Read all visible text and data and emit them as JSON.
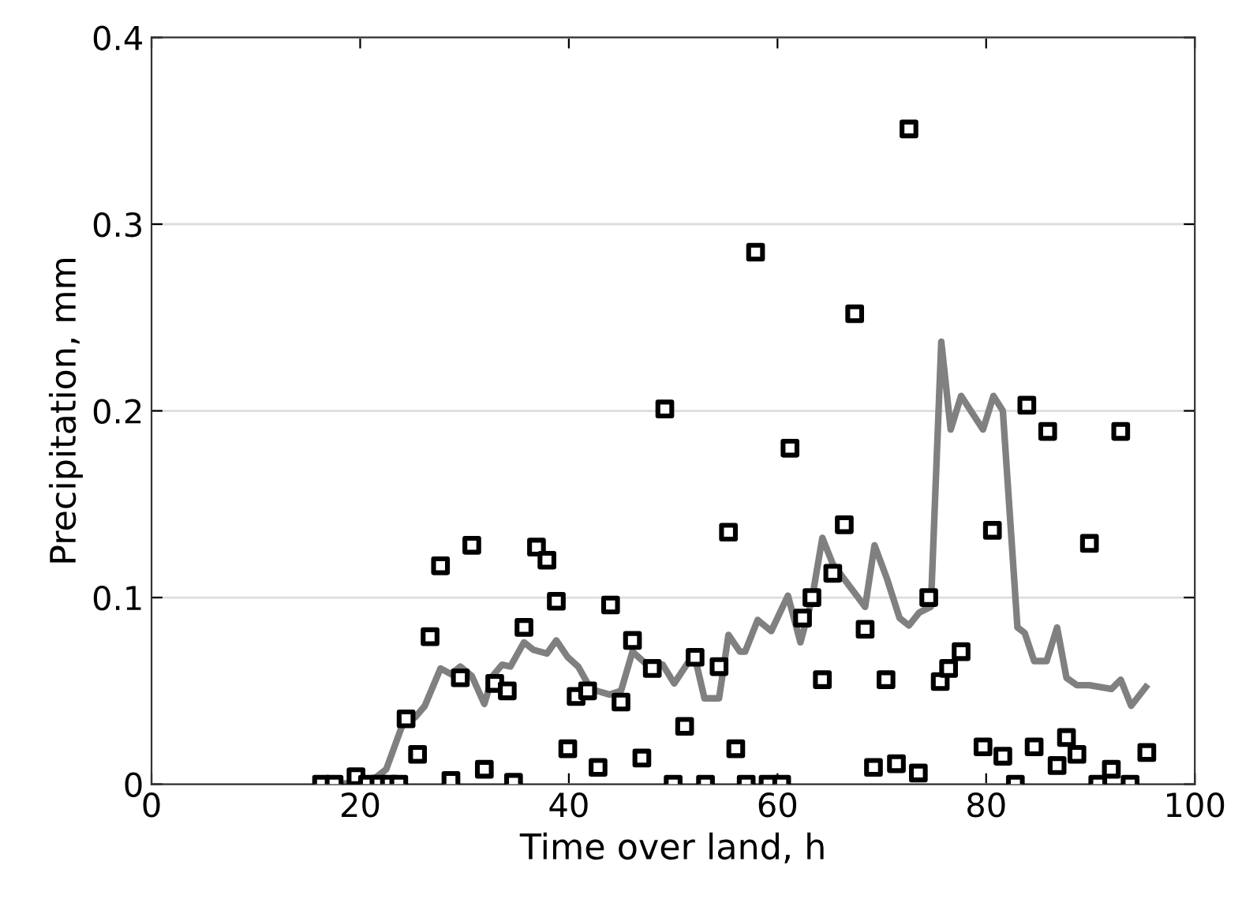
{
  "chart_data": {
    "type": "scatter",
    "xlabel": "Time over land, h",
    "ylabel": "Precipitation, mm",
    "xlim": [
      0,
      100
    ],
    "ylim": [
      0,
      0.4
    ],
    "xticks": [
      0,
      20,
      40,
      60,
      80,
      100
    ],
    "yticks": [
      0,
      0.1,
      0.2,
      0.3,
      0.4
    ],
    "grid": "y",
    "series": [
      {
        "color": "#000000",
        "marker": "square",
        "x": [
          16.3,
          17.5,
          19.6,
          20.7,
          21.8,
          22.8,
          23.7,
          24.4,
          25.5,
          26.7,
          27.7,
          28.7,
          29.6,
          30.7,
          31.9,
          32.9,
          34.1,
          34.7,
          35.7,
          36.9,
          37.9,
          38.8,
          39.9,
          40.7,
          41.8,
          42.8,
          44.0,
          45.0,
          46.1,
          47.0,
          48.0,
          49.2,
          50.0,
          51.1,
          52.1,
          53.1,
          54.4,
          55.3,
          56.0,
          57.0,
          57.9,
          59.1,
          60.4,
          61.2,
          62.4,
          63.3,
          64.3,
          65.3,
          66.4,
          67.4,
          68.4,
          69.2,
          70.4,
          71.4,
          72.6,
          73.5,
          74.5,
          75.6,
          76.4,
          77.6,
          79.7,
          80.6,
          81.6,
          82.8,
          83.9,
          84.6,
          85.9,
          86.8,
          87.7,
          88.7,
          89.9,
          90.7,
          92.0,
          92.9,
          93.8,
          95.4
        ],
        "values": [
          0,
          0,
          0.004,
          0,
          0,
          0,
          0,
          0.035,
          0.016,
          0.079,
          0.117,
          0.002,
          0.057,
          0.128,
          0.008,
          0.054,
          0.05,
          0.001,
          0.084,
          0.127,
          0.12,
          0.098,
          0.019,
          0.047,
          0.05,
          0.009,
          0.096,
          0.044,
          0.077,
          0.014,
          0.062,
          0.201,
          0,
          0.031,
          0.068,
          0,
          0.063,
          0.135,
          0.019,
          0,
          0.285,
          0,
          0,
          0.18,
          0.089,
          0.1,
          0.056,
          0.113,
          0.139,
          0.252,
          0.083,
          0.009,
          0.056,
          0.011,
          0.351,
          0.006,
          0.1,
          0.055,
          0.062,
          0.071,
          0.02,
          0.136,
          0.015,
          0,
          0.203,
          0.02,
          0.189,
          0.01,
          0.025,
          0.016,
          0.129,
          0,
          0.008,
          0.189,
          0,
          0.017
        ]
      },
      {
        "type": "line",
        "color": "#808080",
        "marker": "none",
        "line_style": "solid",
        "x": [
          16.6,
          20.9,
          22.5,
          24.0,
          25.3,
          26.2,
          27.7,
          28.7,
          29.6,
          30.7,
          31.9,
          32.7,
          33.6,
          34.4,
          35.7,
          36.6,
          37.9,
          38.8,
          39.9,
          40.9,
          42.1,
          43.9,
          45.0,
          46.1,
          47.3,
          49.0,
          50.1,
          52.0,
          53.0,
          54.4,
          55.3,
          56.4,
          56.9,
          58.1,
          59.4,
          61.0,
          62.2,
          63.3,
          64.3,
          65.3,
          68.4,
          69.3,
          70.5,
          71.7,
          72.6,
          73.6,
          74.7,
          75.7,
          76.6,
          77.6,
          79.7,
          80.7,
          81.6,
          83.0,
          83.7,
          84.6,
          85.8,
          86.8,
          87.7,
          88.7,
          89.9,
          92.0,
          92.9,
          93.9,
          95.3
        ],
        "values": [
          0,
          0.001,
          0.008,
          0.031,
          0.036,
          0.042,
          0.062,
          0.059,
          0.063,
          0.058,
          0.043,
          0.058,
          0.064,
          0.063,
          0.076,
          0.072,
          0.07,
          0.077,
          0.068,
          0.063,
          0.051,
          0.048,
          0.05,
          0.071,
          0.065,
          0.064,
          0.054,
          0.07,
          0.046,
          0.046,
          0.08,
          0.071,
          0.071,
          0.088,
          0.082,
          0.101,
          0.076,
          0.099,
          0.132,
          0.118,
          0.095,
          0.128,
          0.11,
          0.089,
          0.085,
          0.092,
          0.095,
          0.237,
          0.19,
          0.208,
          0.19,
          0.208,
          0.2,
          0.084,
          0.081,
          0.066,
          0.066,
          0.084,
          0.057,
          0.053,
          0.053,
          0.051,
          0.056,
          0.042,
          0.052
        ]
      }
    ]
  }
}
